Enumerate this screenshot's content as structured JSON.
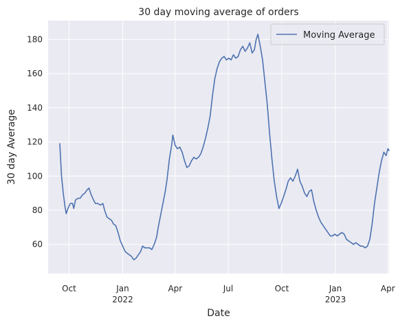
{
  "chart_data": {
    "type": "line",
    "title": "30 day moving average of orders",
    "xlabel": "Date",
    "ylabel": "30 day Average",
    "x_ticks": [
      {
        "date": "2021-10-01",
        "label": "Oct",
        "sublabel": ""
      },
      {
        "date": "2022-01-01",
        "label": "Jan",
        "sublabel": "2022"
      },
      {
        "date": "2022-04-01",
        "label": "Apr",
        "sublabel": ""
      },
      {
        "date": "2022-07-01",
        "label": "Jul",
        "sublabel": ""
      },
      {
        "date": "2022-10-01",
        "label": "Oct",
        "sublabel": ""
      },
      {
        "date": "2023-01-01",
        "label": "Jan",
        "sublabel": "2023"
      },
      {
        "date": "2023-04-01",
        "label": "Apr",
        "sublabel": ""
      }
    ],
    "y_ticks": [
      60,
      80,
      100,
      120,
      140,
      160,
      180
    ],
    "xlim": [
      "2021-08-26",
      "2023-04-03"
    ],
    "ylim": [
      43,
      191
    ],
    "grid": true,
    "legend_position": "top-right",
    "colors": {
      "line": "#4c72b0",
      "background": "#eaeaf2",
      "grid": "#ffffff"
    },
    "series": [
      {
        "name": "Moving Average",
        "points": [
          [
            "2021-09-15",
            119
          ],
          [
            "2021-09-18",
            100
          ],
          [
            "2021-09-21",
            90
          ],
          [
            "2021-09-24",
            82
          ],
          [
            "2021-09-26",
            78
          ],
          [
            "2021-09-29",
            81
          ],
          [
            "2021-10-03",
            84
          ],
          [
            "2021-10-07",
            84
          ],
          [
            "2021-10-09",
            81
          ],
          [
            "2021-10-12",
            86
          ],
          [
            "2021-10-16",
            87
          ],
          [
            "2021-10-20",
            87
          ],
          [
            "2021-10-24",
            89
          ],
          [
            "2021-10-28",
            90
          ],
          [
            "2021-11-01",
            92
          ],
          [
            "2021-11-04",
            93
          ],
          [
            "2021-11-08",
            89
          ],
          [
            "2021-11-12",
            86
          ],
          [
            "2021-11-15",
            84
          ],
          [
            "2021-11-19",
            84
          ],
          [
            "2021-11-24",
            83
          ],
          [
            "2021-11-28",
            84
          ],
          [
            "2021-12-01",
            80
          ],
          [
            "2021-12-05",
            76
          ],
          [
            "2021-12-09",
            75
          ],
          [
            "2021-12-13",
            74
          ],
          [
            "2021-12-16",
            72
          ],
          [
            "2021-12-20",
            71
          ],
          [
            "2021-12-24",
            67
          ],
          [
            "2021-12-28",
            62
          ],
          [
            "2022-01-01",
            59
          ],
          [
            "2022-01-05",
            56
          ],
          [
            "2022-01-08",
            55
          ],
          [
            "2022-01-12",
            54
          ],
          [
            "2022-01-16",
            53
          ],
          [
            "2022-01-20",
            51
          ],
          [
            "2022-01-24",
            52
          ],
          [
            "2022-01-28",
            54
          ],
          [
            "2022-02-01",
            56
          ],
          [
            "2022-02-04",
            59
          ],
          [
            "2022-02-08",
            58
          ],
          [
            "2022-02-12",
            58
          ],
          [
            "2022-02-16",
            58
          ],
          [
            "2022-02-20",
            57
          ],
          [
            "2022-02-24",
            60
          ],
          [
            "2022-02-28",
            64
          ],
          [
            "2022-03-03",
            70
          ],
          [
            "2022-03-07",
            77
          ],
          [
            "2022-03-11",
            84
          ],
          [
            "2022-03-15",
            91
          ],
          [
            "2022-03-18",
            98
          ],
          [
            "2022-03-22",
            110
          ],
          [
            "2022-03-26",
            118
          ],
          [
            "2022-03-28",
            124
          ],
          [
            "2022-04-01",
            118
          ],
          [
            "2022-04-05",
            116
          ],
          [
            "2022-04-09",
            117
          ],
          [
            "2022-04-13",
            114
          ],
          [
            "2022-04-17",
            109
          ],
          [
            "2022-04-21",
            105
          ],
          [
            "2022-04-25",
            106
          ],
          [
            "2022-04-29",
            109
          ],
          [
            "2022-05-03",
            111
          ],
          [
            "2022-05-07",
            110
          ],
          [
            "2022-05-11",
            111
          ],
          [
            "2022-05-15",
            113
          ],
          [
            "2022-05-19",
            117
          ],
          [
            "2022-05-23",
            122
          ],
          [
            "2022-05-27",
            128
          ],
          [
            "2022-05-31",
            135
          ],
          [
            "2022-06-04",
            147
          ],
          [
            "2022-06-08",
            157
          ],
          [
            "2022-06-12",
            163
          ],
          [
            "2022-06-16",
            167
          ],
          [
            "2022-06-20",
            169
          ],
          [
            "2022-06-24",
            170
          ],
          [
            "2022-06-28",
            168
          ],
          [
            "2022-07-02",
            169
          ],
          [
            "2022-07-06",
            168
          ],
          [
            "2022-07-10",
            171
          ],
          [
            "2022-07-14",
            169
          ],
          [
            "2022-07-18",
            170
          ],
          [
            "2022-07-22",
            174
          ],
          [
            "2022-07-26",
            176
          ],
          [
            "2022-07-30",
            173
          ],
          [
            "2022-08-03",
            175
          ],
          [
            "2022-08-07",
            178
          ],
          [
            "2022-08-11",
            172
          ],
          [
            "2022-08-15",
            174
          ],
          [
            "2022-08-18",
            180
          ],
          [
            "2022-08-21",
            183
          ],
          [
            "2022-08-25",
            176
          ],
          [
            "2022-08-29",
            168
          ],
          [
            "2022-09-02",
            155
          ],
          [
            "2022-09-06",
            142
          ],
          [
            "2022-09-10",
            125
          ],
          [
            "2022-09-14",
            110
          ],
          [
            "2022-09-18",
            97
          ],
          [
            "2022-09-22",
            88
          ],
          [
            "2022-09-26",
            81
          ],
          [
            "2022-09-30",
            84
          ],
          [
            "2022-10-04",
            88
          ],
          [
            "2022-10-08",
            92
          ],
          [
            "2022-10-12",
            97
          ],
          [
            "2022-10-16",
            99
          ],
          [
            "2022-10-20",
            97
          ],
          [
            "2022-10-24",
            100
          ],
          [
            "2022-10-28",
            104
          ],
          [
            "2022-11-01",
            97
          ],
          [
            "2022-11-05",
            94
          ],
          [
            "2022-11-09",
            90
          ],
          [
            "2022-11-13",
            88
          ],
          [
            "2022-11-17",
            91
          ],
          [
            "2022-11-21",
            92
          ],
          [
            "2022-11-25",
            85
          ],
          [
            "2022-11-29",
            80
          ],
          [
            "2022-12-03",
            76
          ],
          [
            "2022-12-07",
            73
          ],
          [
            "2022-12-11",
            71
          ],
          [
            "2022-12-15",
            69
          ],
          [
            "2022-12-19",
            67
          ],
          [
            "2022-12-23",
            65
          ],
          [
            "2022-12-27",
            65
          ],
          [
            "2022-12-31",
            66
          ],
          [
            "2023-01-04",
            65
          ],
          [
            "2023-01-08",
            66
          ],
          [
            "2023-01-12",
            67
          ],
          [
            "2023-01-16",
            66
          ],
          [
            "2023-01-20",
            63
          ],
          [
            "2023-01-24",
            62
          ],
          [
            "2023-01-28",
            61
          ],
          [
            "2023-02-01",
            60
          ],
          [
            "2023-02-05",
            61
          ],
          [
            "2023-02-09",
            60
          ],
          [
            "2023-02-13",
            59
          ],
          [
            "2023-02-17",
            59
          ],
          [
            "2023-02-21",
            58
          ],
          [
            "2023-02-25",
            59
          ],
          [
            "2023-03-01",
            63
          ],
          [
            "2023-03-05",
            72
          ],
          [
            "2023-03-09",
            84
          ],
          [
            "2023-03-13",
            93
          ],
          [
            "2023-03-17",
            102
          ],
          [
            "2023-03-21",
            109
          ],
          [
            "2023-03-25",
            114
          ],
          [
            "2023-03-29",
            112
          ],
          [
            "2023-04-01",
            116
          ],
          [
            "2023-04-03",
            115
          ]
        ]
      }
    ]
  }
}
